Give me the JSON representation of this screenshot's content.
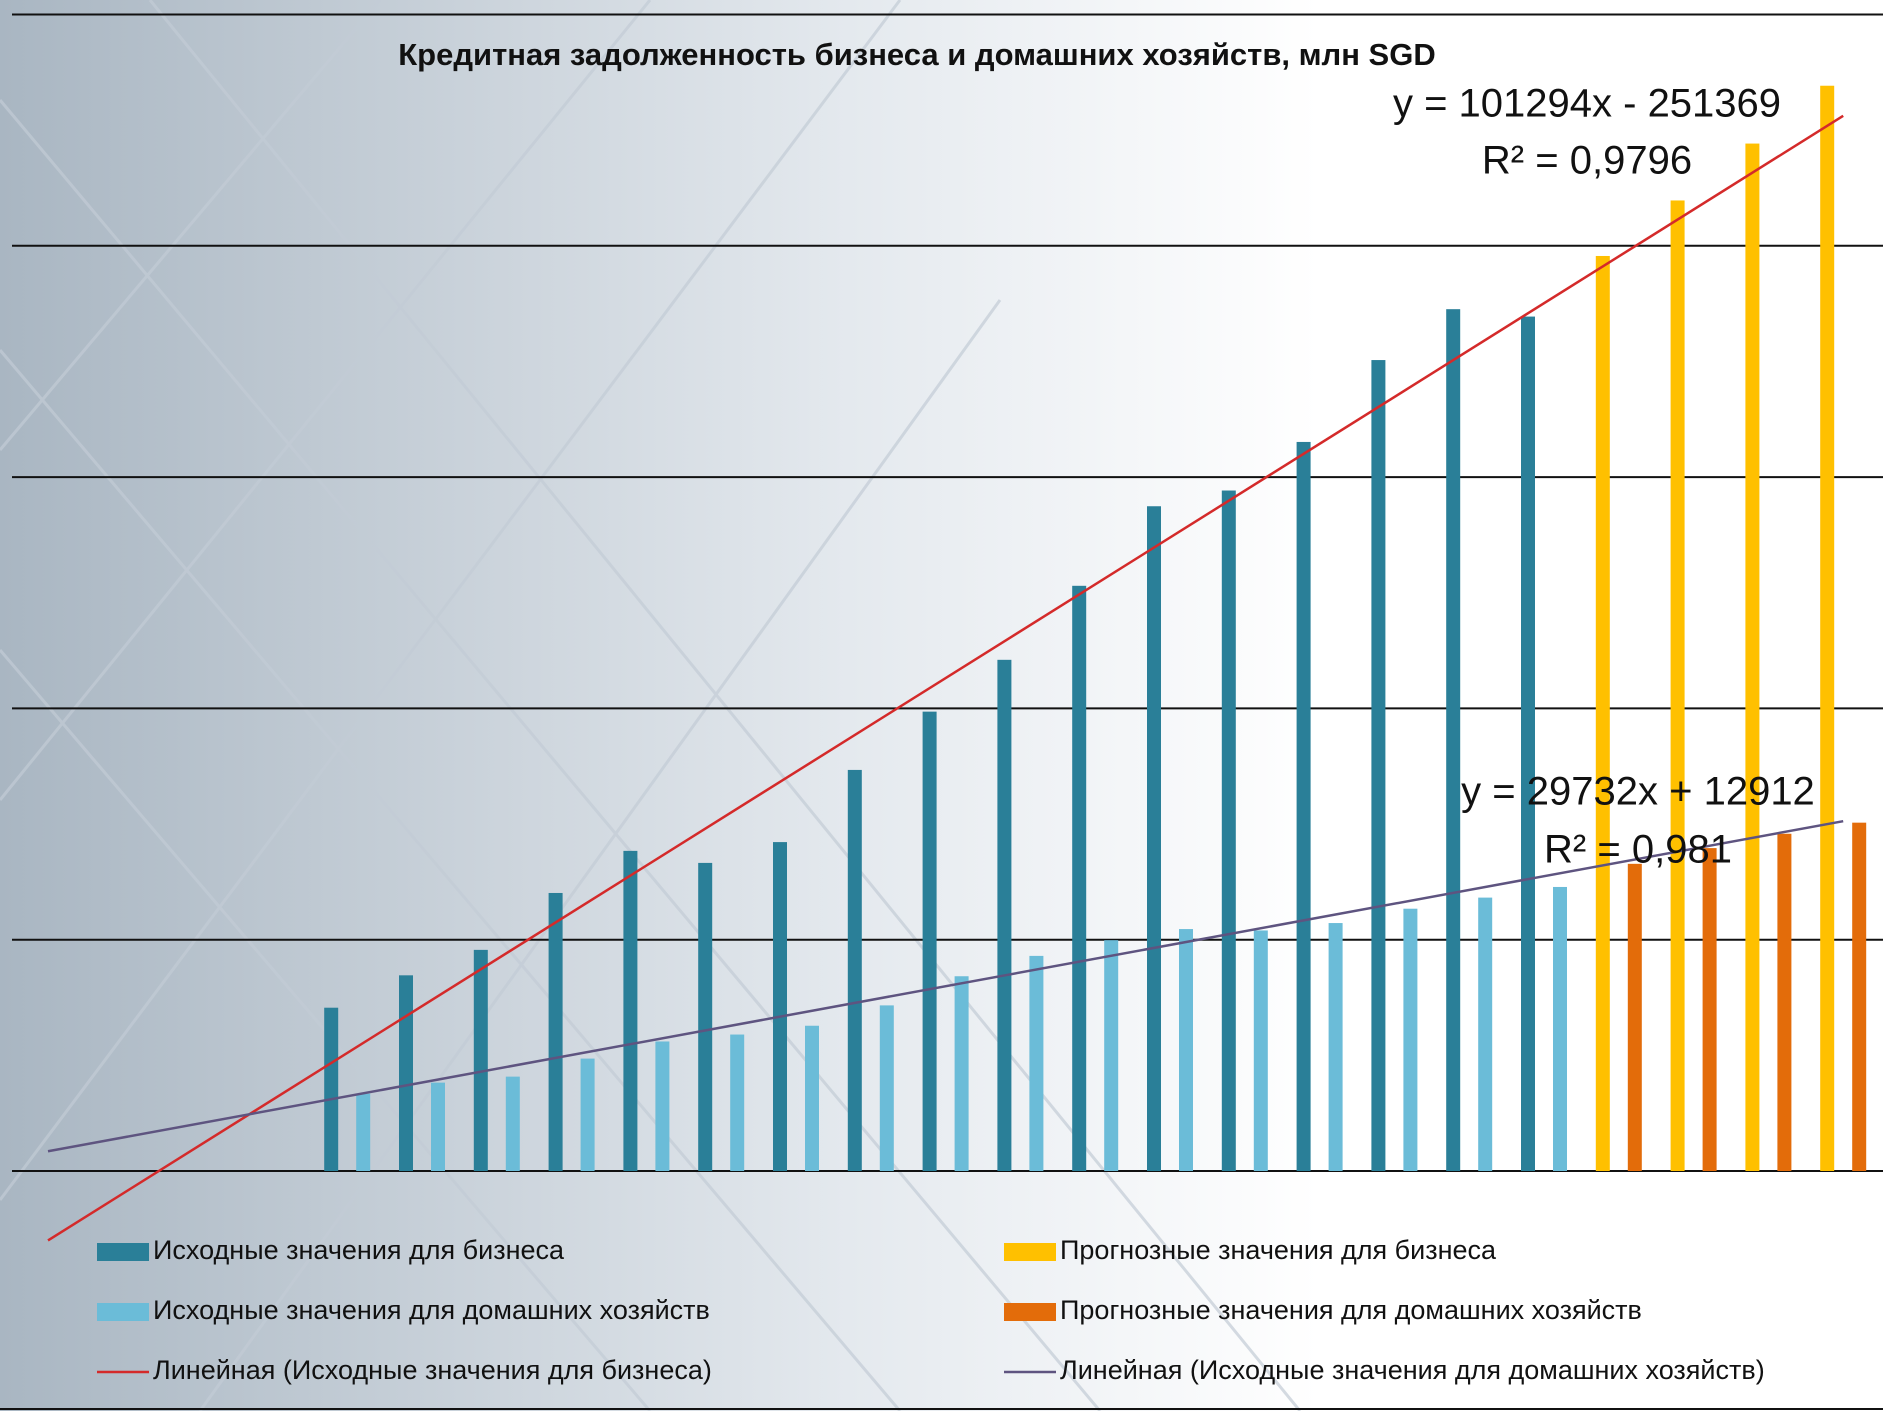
{
  "chart_data": {
    "type": "bar",
    "title": "Кредитная задолженность бизнеса и домашних хозяйств, млн SGD",
    "categories": [
      null,
      null,
      null,
      null,
      null,
      null,
      null,
      null,
      null,
      null,
      null,
      null,
      null,
      null,
      null,
      null,
      null,
      null,
      null,
      null,
      null,
      null,
      null,
      null,
      null
    ],
    "series": [
      {
        "name": "Исходные значения для бизнеса",
        "color": "#2a7f98",
        "values": [
          null,
          null,
          null,
          null,
          353000,
          423000,
          478000,
          601000,
          692000,
          666000,
          711000,
          867000,
          993000,
          1105000,
          1265000,
          1437000,
          1471000,
          1576000,
          1753000,
          1863000,
          1847000,
          null,
          null,
          null,
          null
        ]
      },
      {
        "name": "Исходные значения для домашних хозяйств",
        "color": "#6bbcd8",
        "values": [
          null,
          null,
          null,
          null,
          167000,
          191000,
          204000,
          243000,
          280000,
          295000,
          314000,
          358000,
          421000,
          465000,
          499000,
          523000,
          520000,
          536000,
          567000,
          591000,
          614000,
          null,
          null,
          null,
          null
        ]
      },
      {
        "name": "Прогнозные значения для бизнеса",
        "color": "#ffc000",
        "values": [
          null,
          null,
          null,
          null,
          null,
          null,
          null,
          null,
          null,
          null,
          null,
          null,
          null,
          null,
          null,
          null,
          null,
          null,
          null,
          null,
          null,
          1978000,
          2098000,
          2221000,
          2346000
        ]
      },
      {
        "name": "Прогнозные значения для домашних хозяйств",
        "color": "#e36c0a",
        "values": [
          null,
          null,
          null,
          null,
          null,
          null,
          null,
          null,
          null,
          null,
          null,
          null,
          null,
          null,
          null,
          null,
          null,
          null,
          null,
          null,
          null,
          664000,
          698000,
          729000,
          753000
        ]
      }
    ],
    "trendlines": [
      {
        "name": "Линейная (Исходные значения для бизнеса)",
        "color": "#d42a2a",
        "slope": 101294,
        "intercept": -251369,
        "equation": "y = 101294x - 251369",
        "r2": "R² = 0,9796"
      },
      {
        "name": "Линейная (Исходные значения для домашних хозяйств)",
        "color": "#5e5480",
        "slope": 29732,
        "intercept": 12912,
        "equation": "y = 29732x + 12912",
        "r2": "R² = 0,981"
      }
    ],
    "ylim": [
      0,
      2500000
    ],
    "yticks": [
      0,
      500000,
      1000000,
      1500000,
      2000000,
      2500000
    ],
    "grid": true
  }
}
